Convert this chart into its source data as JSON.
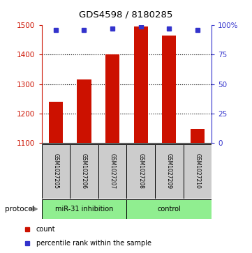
{
  "title": "GDS4598 / 8180285",
  "samples": [
    "GSM1027205",
    "GSM1027206",
    "GSM1027207",
    "GSM1027208",
    "GSM1027209",
    "GSM1027210"
  ],
  "counts": [
    1240,
    1315,
    1400,
    1497,
    1465,
    1148
  ],
  "percentiles": [
    96,
    96,
    97,
    99,
    97,
    96
  ],
  "ylim_left": [
    1100,
    1500
  ],
  "ylim_right": [
    0,
    100
  ],
  "yticks_left": [
    1100,
    1200,
    1300,
    1400,
    1500
  ],
  "yticks_right": [
    0,
    25,
    50,
    75,
    100
  ],
  "bar_color": "#cc1100",
  "dot_color": "#3333cc",
  "group_labels": [
    "miR-31 inhibition",
    "control"
  ],
  "group_starts": [
    0,
    3
  ],
  "group_ends": [
    3,
    6
  ],
  "protocol_label": "protocol",
  "legend_items": [
    {
      "color": "#cc1100",
      "label": "count"
    },
    {
      "color": "#3333cc",
      "label": "percentile rank within the sample"
    }
  ],
  "background_color": "#ffffff",
  "sample_box_color": "#cccccc",
  "group_box_color": "#90ee90"
}
